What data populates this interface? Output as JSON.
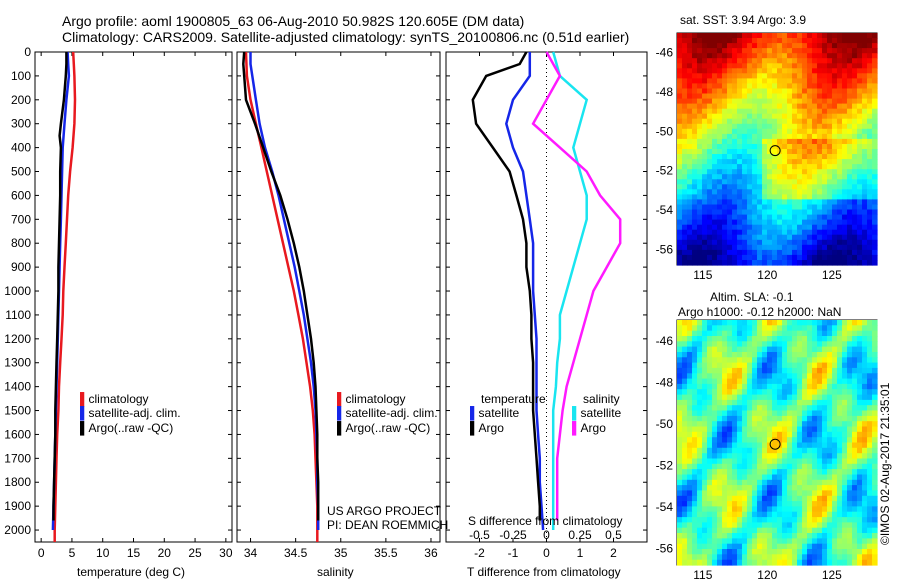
{
  "header": {
    "line1": "Argo profile: aoml 1900805_63 06-Aug-2010 50.982S 120.605E (DM data)",
    "line2": "Climatology: CARS2009. Satellite-adjusted climatology: synTS_20100806.nc (0.51d earlier)"
  },
  "colors": {
    "climatology": "#e8191f",
    "satellite": "#1526e8",
    "argo": "#000000",
    "argo_salinity": "#ff1aff",
    "satellite_salinity": "#19e5f0"
  },
  "depth_ticks": [
    "0",
    "100",
    "200",
    "300",
    "400",
    "500",
    "600",
    "700",
    "800",
    "900",
    "1000",
    "1100",
    "1200",
    "1300",
    "1400",
    "1500",
    "1600",
    "1700",
    "1800",
    "1900",
    "2000"
  ],
  "chart_data": [
    {
      "type": "line",
      "xlabel": "temperature (deg C)",
      "xlim": [
        -1,
        31
      ],
      "ylim": [
        0,
        2050
      ],
      "x_ticks": [
        0,
        5,
        10,
        15,
        20,
        25,
        30
      ],
      "x_tick_labels": [
        "0",
        "5",
        "10",
        "15",
        "20",
        "25",
        "30"
      ],
      "legend_placement": "lower-left",
      "series": [
        {
          "name": "climatology",
          "color": "#e8191f",
          "points": [
            [
              5.2,
              0
            ],
            [
              5.3,
              50
            ],
            [
              5.4,
              100
            ],
            [
              5.5,
              200
            ],
            [
              5.4,
              300
            ],
            [
              5.1,
              400
            ],
            [
              4.7,
              500
            ],
            [
              4.4,
              600
            ],
            [
              4.2,
              700
            ],
            [
              4.0,
              800
            ],
            [
              3.8,
              900
            ],
            [
              3.6,
              1000
            ],
            [
              3.5,
              1100
            ],
            [
              3.3,
              1200
            ],
            [
              3.1,
              1300
            ],
            [
              2.9,
              1400
            ],
            [
              2.8,
              1500
            ],
            [
              2.6,
              1600
            ],
            [
              2.5,
              1700
            ],
            [
              2.4,
              1800
            ],
            [
              2.3,
              1900
            ],
            [
              2.2,
              2000
            ],
            [
              2.2,
              2050
            ]
          ]
        },
        {
          "name": "satellite-adj. clim.",
          "color": "#1526e8",
          "points": [
            [
              4.3,
              0
            ],
            [
              4.4,
              50
            ],
            [
              4.5,
              100
            ],
            [
              4.1,
              200
            ],
            [
              3.8,
              300
            ],
            [
              3.5,
              400
            ],
            [
              3.4,
              500
            ],
            [
              3.3,
              600
            ],
            [
              3.2,
              700
            ],
            [
              3.1,
              800
            ],
            [
              3.0,
              900
            ],
            [
              2.9,
              1000
            ],
            [
              2.8,
              1100
            ],
            [
              2.7,
              1200
            ],
            [
              2.6,
              1300
            ],
            [
              2.5,
              1400
            ],
            [
              2.4,
              1500
            ],
            [
              2.3,
              1600
            ],
            [
              2.2,
              1700
            ],
            [
              2.1,
              1800
            ],
            [
              2.0,
              1900
            ],
            [
              1.9,
              2000
            ]
          ]
        },
        {
          "name": "Argo(..raw -QC)",
          "color": "#000000",
          "points": [
            [
              4.1,
              0
            ],
            [
              4.1,
              50
            ],
            [
              4.0,
              100
            ],
            [
              3.7,
              200
            ],
            [
              3.2,
              300
            ],
            [
              3.0,
              350
            ],
            [
              3.2,
              400
            ],
            [
              3.1,
              500
            ],
            [
              3.1,
              600
            ],
            [
              3.0,
              700
            ],
            [
              2.9,
              800
            ],
            [
              2.8,
              900
            ],
            [
              2.8,
              1000
            ],
            [
              2.7,
              1100
            ],
            [
              2.6,
              1200
            ],
            [
              2.5,
              1300
            ],
            [
              2.4,
              1400
            ],
            [
              2.3,
              1500
            ],
            [
              2.3,
              1600
            ],
            [
              2.2,
              1700
            ],
            [
              2.1,
              1800
            ],
            [
              2.0,
              1900
            ],
            [
              2.0,
              1960
            ]
          ]
        }
      ]
    },
    {
      "type": "line",
      "xlabel": "salinity",
      "xlim": [
        33.85,
        36.1
      ],
      "ylim": [
        0,
        2050
      ],
      "x_ticks": [
        34,
        34.5,
        35,
        35.5,
        36
      ],
      "x_tick_labels": [
        "34",
        "34.5",
        "35",
        "35.5",
        "36"
      ],
      "legend_placement": "lower-right",
      "annotation": [
        "US ARGO PROJECT",
        "PI: DEAN ROEMMICH"
      ],
      "series": [
        {
          "name": "climatology",
          "color": "#e8191f",
          "points": [
            [
              33.95,
              0
            ],
            [
              33.96,
              100
            ],
            [
              34.0,
              200
            ],
            [
              34.06,
              300
            ],
            [
              34.12,
              400
            ],
            [
              34.18,
              500
            ],
            [
              34.24,
              600
            ],
            [
              34.3,
              700
            ],
            [
              34.36,
              800
            ],
            [
              34.42,
              900
            ],
            [
              34.48,
              1000
            ],
            [
              34.53,
              1100
            ],
            [
              34.58,
              1200
            ],
            [
              34.62,
              1300
            ],
            [
              34.66,
              1400
            ],
            [
              34.69,
              1500
            ],
            [
              34.71,
              1600
            ],
            [
              34.72,
              1700
            ],
            [
              34.73,
              1800
            ],
            [
              34.74,
              1900
            ],
            [
              34.74,
              2000
            ],
            [
              34.74,
              2050
            ]
          ]
        },
        {
          "name": "satellite-adj. clim.",
          "color": "#1526e8",
          "points": [
            [
              34.0,
              0
            ],
            [
              34.0,
              50
            ],
            [
              34.02,
              100
            ],
            [
              34.06,
              200
            ],
            [
              34.1,
              300
            ],
            [
              34.16,
              400
            ],
            [
              34.24,
              500
            ],
            [
              34.31,
              600
            ],
            [
              34.37,
              700
            ],
            [
              34.43,
              800
            ],
            [
              34.49,
              900
            ],
            [
              34.54,
              1000
            ],
            [
              34.59,
              1100
            ],
            [
              34.63,
              1200
            ],
            [
              34.67,
              1300
            ],
            [
              34.7,
              1400
            ],
            [
              34.72,
              1500
            ],
            [
              34.73,
              1600
            ],
            [
              34.74,
              1700
            ],
            [
              34.74,
              1800
            ],
            [
              34.75,
              1900
            ],
            [
              34.75,
              2000
            ]
          ]
        },
        {
          "name": "Argo(..raw -QC)",
          "color": "#000000",
          "points": [
            [
              33.93,
              0
            ],
            [
              33.92,
              50
            ],
            [
              33.93,
              100
            ],
            [
              33.95,
              200
            ],
            [
              34.05,
              300
            ],
            [
              34.14,
              400
            ],
            [
              34.23,
              500
            ],
            [
              34.33,
              600
            ],
            [
              34.41,
              700
            ],
            [
              34.48,
              800
            ],
            [
              34.54,
              900
            ],
            [
              34.59,
              1000
            ],
            [
              34.63,
              1100
            ],
            [
              34.67,
              1200
            ],
            [
              34.7,
              1300
            ],
            [
              34.72,
              1400
            ],
            [
              34.73,
              1500
            ],
            [
              34.74,
              1600
            ],
            [
              34.74,
              1700
            ],
            [
              34.75,
              1800
            ],
            [
              34.75,
              1900
            ],
            [
              34.75,
              1960
            ]
          ]
        }
      ]
    },
    {
      "type": "line",
      "xlabel": "T difference from climatology",
      "top_label": "S difference from climatology",
      "xlim": [
        -3.0,
        3.0
      ],
      "ylim": [
        0,
        2050
      ],
      "x_ticks": [
        -2,
        -1,
        0,
        1,
        2
      ],
      "x_tick_labels": [
        "-2",
        "-1",
        "0",
        "1",
        "2"
      ],
      "s_ticks": [
        -0.5,
        -0.25,
        0,
        0.25,
        0.5
      ],
      "s_tick_labels": [
        "-0.5",
        "-0.25",
        "0",
        "0.25",
        "0.5"
      ],
      "legend_placement": "lower",
      "legend_groups": [
        "temperature",
        "salinity"
      ],
      "series": [
        {
          "name": "satellite",
          "group": "temperature",
          "color": "#1526e8",
          "points": [
            [
              -0.5,
              0
            ],
            [
              -0.5,
              100
            ],
            [
              -1.0,
              200
            ],
            [
              -1.2,
              300
            ],
            [
              -1.0,
              400
            ],
            [
              -0.7,
              500
            ],
            [
              -0.6,
              600
            ],
            [
              -0.5,
              700
            ],
            [
              -0.4,
              800
            ],
            [
              -0.4,
              900
            ],
            [
              -0.4,
              1000
            ],
            [
              -0.35,
              1100
            ],
            [
              -0.3,
              1200
            ],
            [
              -0.3,
              1300
            ],
            [
              -0.3,
              1400
            ],
            [
              -0.3,
              1500
            ],
            [
              -0.25,
              1600
            ],
            [
              -0.2,
              1700
            ],
            [
              -0.2,
              1800
            ],
            [
              -0.15,
              1900
            ],
            [
              -0.1,
              2000
            ]
          ]
        },
        {
          "name": "Argo",
          "group": "temperature",
          "color": "#000000",
          "points": [
            [
              -0.6,
              0
            ],
            [
              -0.8,
              50
            ],
            [
              -1.8,
              100
            ],
            [
              -2.2,
              200
            ],
            [
              -2.1,
              300
            ],
            [
              -1.6,
              400
            ],
            [
              -1.1,
              500
            ],
            [
              -0.9,
              600
            ],
            [
              -0.7,
              700
            ],
            [
              -0.6,
              800
            ],
            [
              -0.6,
              900
            ],
            [
              -0.5,
              1000
            ],
            [
              -0.45,
              1100
            ],
            [
              -0.45,
              1200
            ],
            [
              -0.4,
              1300
            ],
            [
              -0.4,
              1400
            ],
            [
              -0.4,
              1500
            ],
            [
              -0.35,
              1600
            ],
            [
              -0.3,
              1700
            ],
            [
              -0.25,
              1800
            ],
            [
              -0.2,
              1900
            ],
            [
              -0.2,
              1960
            ]
          ]
        },
        {
          "name": "satellite",
          "group": "salinity",
          "color": "#19e5f0",
          "points": [
            [
              0.05,
              0
            ],
            [
              0.1,
              100
            ],
            [
              0.3,
              200
            ],
            [
              0.25,
              300
            ],
            [
              0.2,
              400
            ],
            [
              0.25,
              500
            ],
            [
              0.3,
              600
            ],
            [
              0.3,
              700
            ],
            [
              0.25,
              800
            ],
            [
              0.2,
              900
            ],
            [
              0.15,
              1000
            ],
            [
              0.1,
              1100
            ],
            [
              0.1,
              1200
            ],
            [
              0.08,
              1300
            ],
            [
              0.07,
              1400
            ],
            [
              0.05,
              1500
            ],
            [
              0.05,
              1600
            ],
            [
              0.05,
              1700
            ],
            [
              0.05,
              1800
            ],
            [
              0.05,
              1900
            ],
            [
              0.05,
              2000
            ]
          ]
        },
        {
          "name": "Argo",
          "group": "salinity",
          "color": "#ff1aff",
          "points": [
            [
              0.0,
              0
            ],
            [
              0.1,
              100
            ],
            [
              0.0,
              200
            ],
            [
              -0.1,
              300
            ],
            [
              0.1,
              400
            ],
            [
              0.3,
              500
            ],
            [
              0.4,
              600
            ],
            [
              0.55,
              700
            ],
            [
              0.55,
              800
            ],
            [
              0.45,
              900
            ],
            [
              0.35,
              1000
            ],
            [
              0.3,
              1100
            ],
            [
              0.25,
              1200
            ],
            [
              0.2,
              1300
            ],
            [
              0.15,
              1400
            ],
            [
              0.12,
              1500
            ],
            [
              0.1,
              1600
            ],
            [
              0.08,
              1700
            ],
            [
              0.08,
              1800
            ],
            [
              0.08,
              1900
            ],
            [
              0.08,
              1960
            ]
          ]
        }
      ]
    },
    {
      "type": "heatmap",
      "title": "sat. SST: 3.94 Argo: 3.9",
      "xlim": [
        113,
        128.5
      ],
      "ylim": [
        -56.8,
        -45
      ],
      "x_ticks": [
        115,
        120,
        125
      ],
      "x_tick_labels": [
        "115",
        "120",
        "125"
      ],
      "y_ticks": [
        -46,
        -48,
        -50,
        -52,
        -54,
        -56
      ],
      "y_tick_labels": [
        "-46",
        "-48",
        "-50",
        "-52",
        "-54",
        "-56"
      ],
      "marker": {
        "lon": 120.605,
        "lat": -50.982
      },
      "colormap": "jet"
    },
    {
      "type": "heatmap",
      "title": "Altim. SLA: -0.1",
      "subtitle": "Argo h1000: -0.12 h2000: NaN",
      "xlim": [
        113,
        128.5
      ],
      "ylim": [
        -56.8,
        -45
      ],
      "x_ticks": [
        115,
        120,
        125
      ],
      "x_tick_labels": [
        "115",
        "120",
        "125"
      ],
      "y_ticks": [
        -46,
        -48,
        -50,
        -52,
        -54,
        -56
      ],
      "y_tick_labels": [
        "-46",
        "-48",
        "-50",
        "-52",
        "-54",
        "-56"
      ],
      "marker": {
        "lon": 120.605,
        "lat": -50.982
      },
      "colormap": "jet"
    }
  ],
  "footer": {
    "watermark": "©IMOS 02-Aug-2017 21:35:01"
  }
}
